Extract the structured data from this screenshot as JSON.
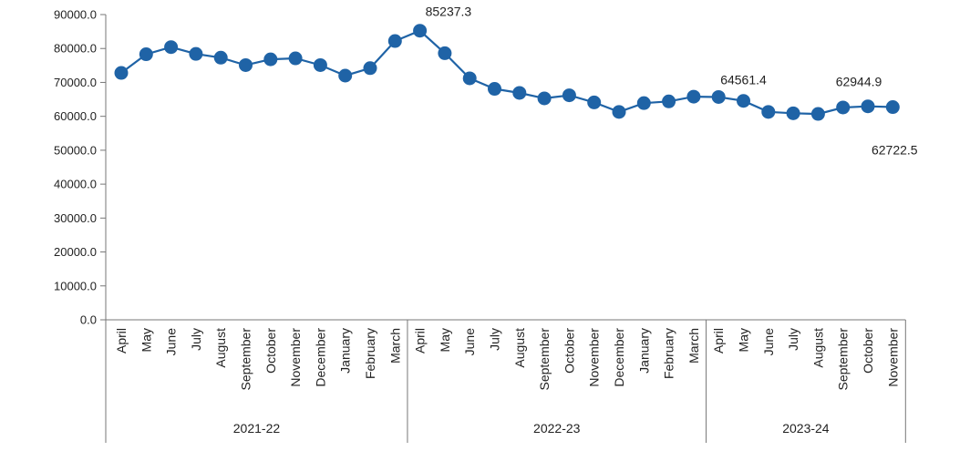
{
  "chart_data": {
    "type": "line",
    "title": "",
    "xlabel": "",
    "ylabel": "",
    "ylim": [
      0,
      90000
    ],
    "yticks": [
      "90000.0",
      "80000.0",
      "70000.0",
      "60000.0",
      "50000.0",
      "40000.0",
      "30000.0",
      "20000.0",
      "10000.0",
      "0.0"
    ],
    "ytick_values": [
      90000,
      80000,
      70000,
      60000,
      50000,
      40000,
      30000,
      20000,
      10000,
      0
    ],
    "grid": false,
    "legend": "none",
    "color": "#1f63a6",
    "groups": [
      {
        "label": "2021-22",
        "count": 12
      },
      {
        "label": "2022-23",
        "count": 12
      },
      {
        "label": "2023-24",
        "count": 8
      }
    ],
    "categories": [
      "April",
      "May",
      "June",
      "July",
      "August",
      "September",
      "October",
      "November",
      "December",
      "January",
      "February",
      "March",
      "April",
      "May",
      "June",
      "July",
      "August",
      "September",
      "October",
      "November",
      "December",
      "January",
      "February",
      "March",
      "April",
      "May",
      "June",
      "July",
      "August",
      "September",
      "October",
      "November"
    ],
    "series": [
      {
        "values": [
          72800,
          78300,
          80400,
          78400,
          77300,
          75100,
          76800,
          77100,
          75100,
          72000,
          74200,
          82200,
          85237.3,
          78600,
          71200,
          68100,
          66900,
          65300,
          66200,
          64100,
          61300,
          63900,
          64400,
          65800,
          65700,
          64561.4,
          61300,
          60900,
          60700,
          62600,
          62944.9,
          62722.5
        ]
      }
    ],
    "data_labels": [
      {
        "index": 12,
        "text": "85237.3"
      },
      {
        "index": 25,
        "text": "64561.4"
      },
      {
        "index": 30,
        "text": "62944.9"
      },
      {
        "index": 31,
        "text": "62722.5"
      }
    ]
  }
}
